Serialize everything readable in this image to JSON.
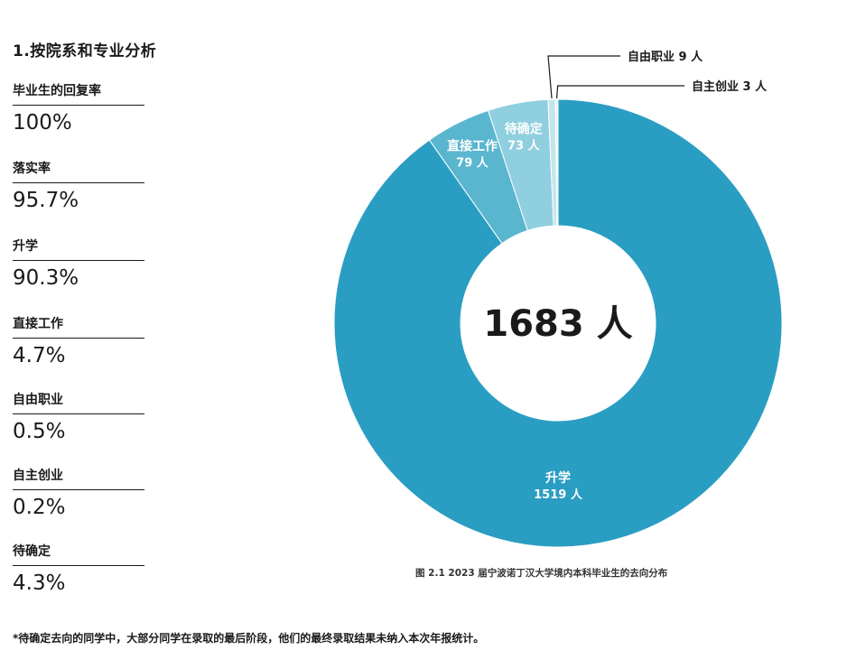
{
  "section_title": "1.按院系和专业分析",
  "stats": [
    {
      "label": "毕业生的回复率",
      "value": "100%"
    },
    {
      "label": "落实率",
      "value": "95.7%"
    },
    {
      "label": "升学",
      "value": "90.3%"
    },
    {
      "label": "直接工作",
      "value": "4.7%"
    },
    {
      "label": "自由职业",
      "value": "0.5%"
    },
    {
      "label": "自主创业",
      "value": "0.2%"
    },
    {
      "label": "待确定",
      "value": "4.3%"
    }
  ],
  "chart_data": {
    "type": "pie",
    "donut": true,
    "center_label": "1683 人",
    "slices": [
      {
        "name": "升学",
        "value": 1519,
        "value_label": "1519 人",
        "color": "#2a9dc2"
      },
      {
        "name": "直接工作",
        "value": 79,
        "value_label": "79 人",
        "color": "#5ab6cf"
      },
      {
        "name": "待确定",
        "value": 73,
        "value_label": "73 人",
        "color": "#8fcfdf"
      },
      {
        "name": "自由职业",
        "value": 9,
        "value_label": "自由职业 9 人",
        "color": "#c4e5ee"
      },
      {
        "name": "自主创业",
        "value": 3,
        "value_label": "自主创业 3 人",
        "color": "#e6f4f8"
      }
    ]
  },
  "caption": "图 2.1 2023 届宁波诺丁汉大学境内本科毕业生的去向分布",
  "footnote": "*待确定去向的同学中，大部分同学在录取的最后阶段，他们的最终录取结果未纳入本次年报统计。"
}
